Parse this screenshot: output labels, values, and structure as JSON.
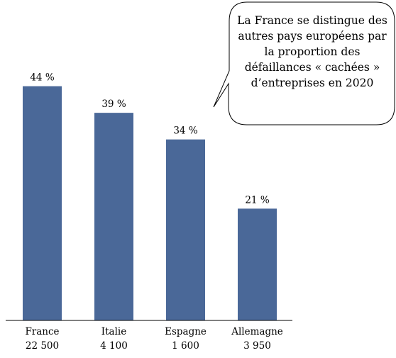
{
  "callout": {
    "text": "La France se distingue des autres pays européens par la proportion des défaillances « cachées » d’entreprises en 2020"
  },
  "colors": {
    "bar": "#4a6898",
    "axis": "#000000"
  },
  "chart_data": {
    "type": "bar",
    "categories": [
      "France",
      "Italie",
      "Espagne",
      "Allemagne"
    ],
    "sublabels": [
      "22 500",
      "4 100",
      "1 600",
      "3 950"
    ],
    "values": [
      44,
      39,
      34,
      21
    ],
    "data_labels": [
      "44 %",
      "39 %",
      "34 %",
      "21 %"
    ],
    "ylim": [
      0,
      55
    ],
    "title": "",
    "xlabel": "",
    "ylabel": "",
    "grid": false,
    "legend": "none"
  }
}
